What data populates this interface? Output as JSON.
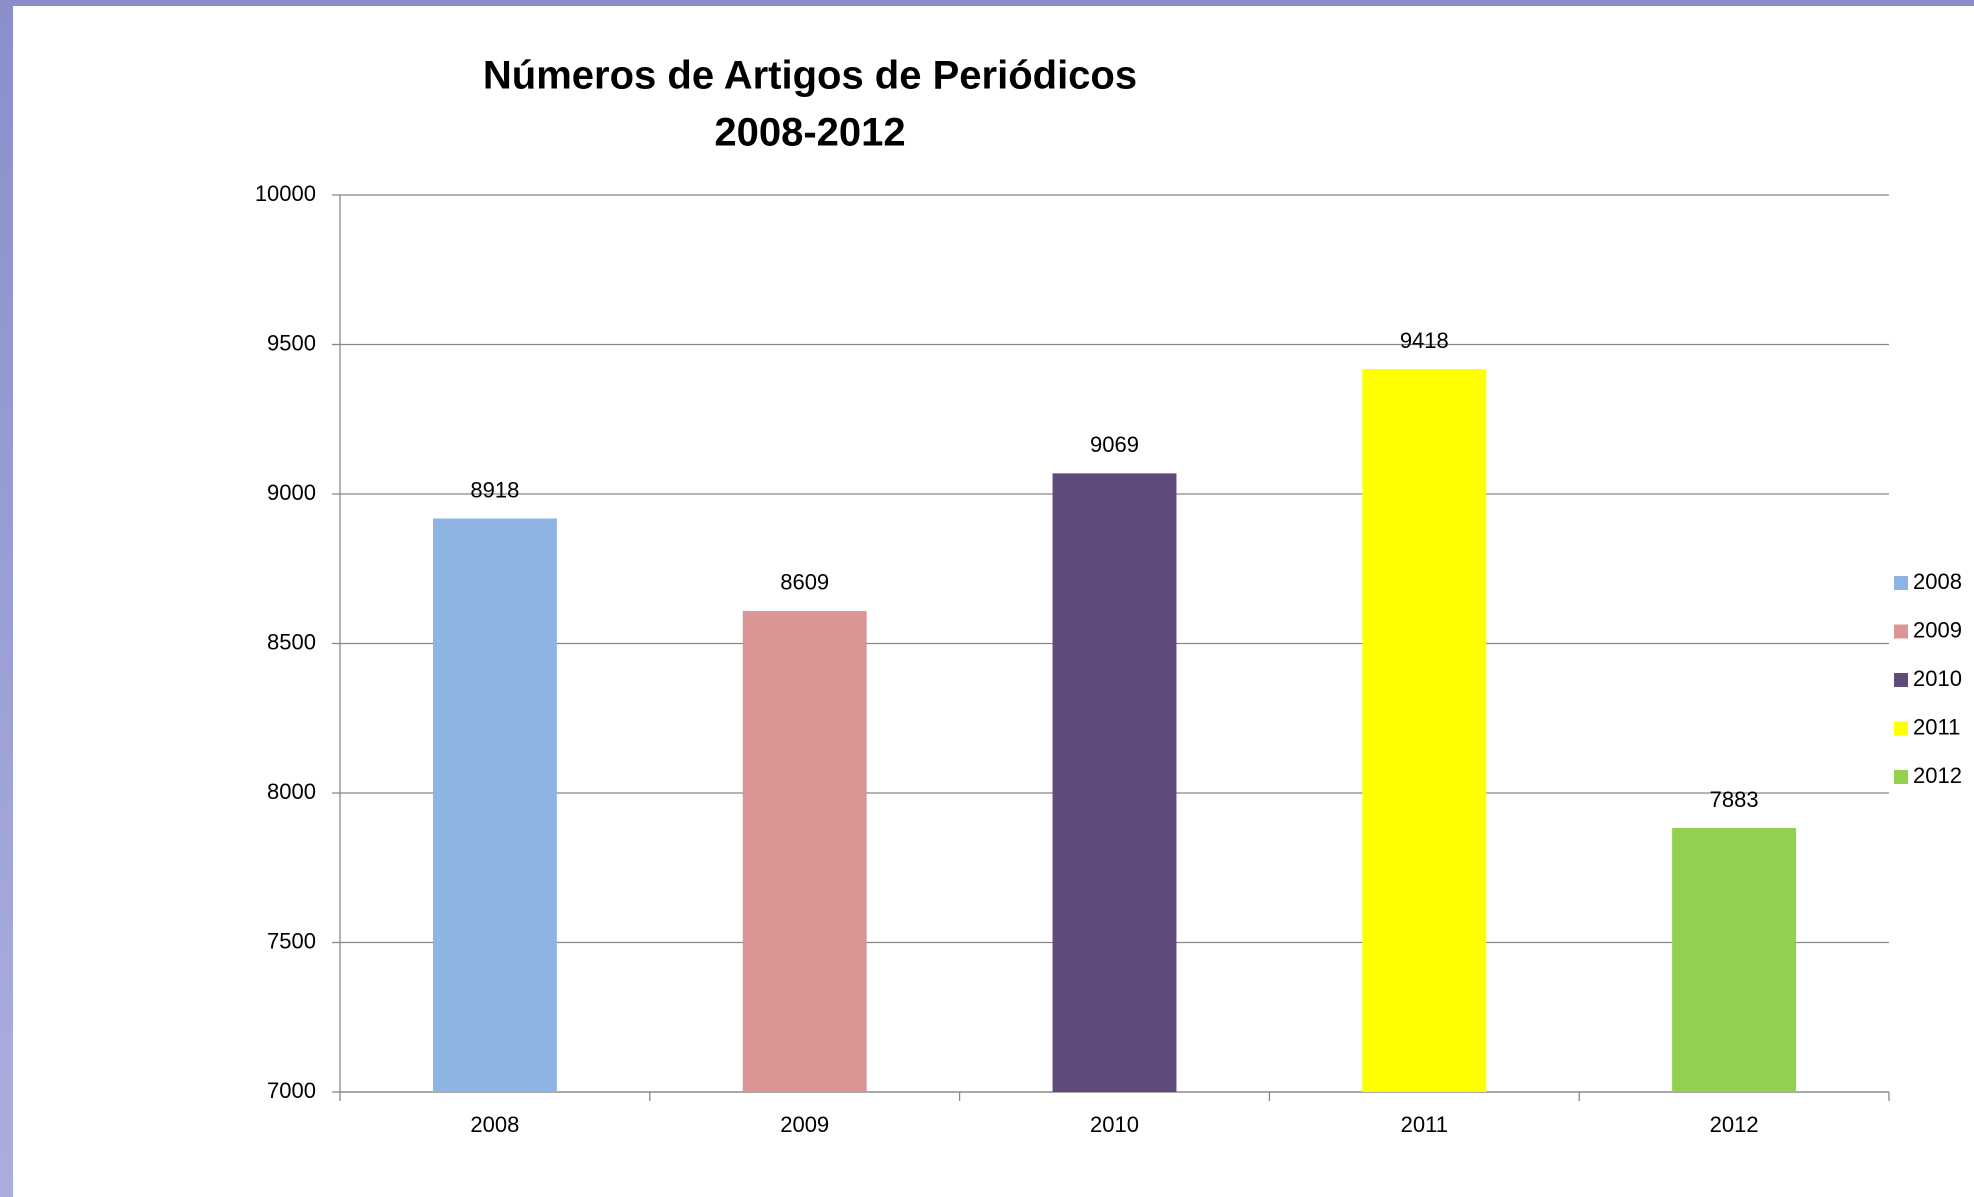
{
  "chart_data": {
    "type": "bar",
    "title": "Números de Artigos de Periódicos",
    "subtitle": "2008-2012",
    "categories": [
      "2008",
      "2009",
      "2010",
      "2011",
      "2012"
    ],
    "values": [
      8918,
      8609,
      9069,
      9418,
      7883
    ],
    "colors": [
      "#8eb4e3",
      "#d99694",
      "#604a7b",
      "#ffff00",
      "#92d050"
    ],
    "ylim": [
      7000,
      10000
    ],
    "yticks": [
      7000,
      7500,
      8000,
      8500,
      9000,
      9500,
      10000
    ],
    "grid": true,
    "legend": "right"
  }
}
